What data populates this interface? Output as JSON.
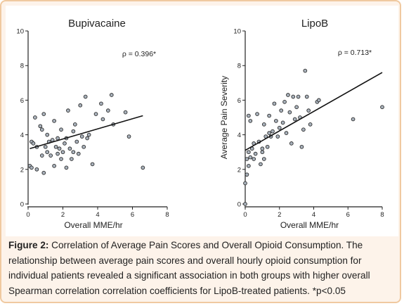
{
  "chart_data": [
    {
      "type": "scatter",
      "title": "Bupivacaine",
      "xlabel": "Overall MME/hr",
      "ylabel": "",
      "xlim": [
        0,
        8
      ],
      "ylim": [
        0,
        10
      ],
      "xticks": [
        "0",
        "2",
        "4",
        "6",
        "8"
      ],
      "yticks": [
        "0",
        "2",
        "4",
        "6",
        "8",
        "10"
      ],
      "annotation": "ρ = 0.396*",
      "trendline": {
        "x": [
          0.1,
          6.6
        ],
        "y": [
          3.2,
          5.1
        ]
      },
      "points": [
        [
          0.1,
          2.2
        ],
        [
          0.2,
          3.6
        ],
        [
          0.2,
          2.1
        ],
        [
          0.3,
          3.5
        ],
        [
          0.4,
          5.0
        ],
        [
          0.5,
          3.3
        ],
        [
          0.5,
          2.0
        ],
        [
          0.7,
          4.5
        ],
        [
          0.8,
          4.3
        ],
        [
          0.8,
          2.8
        ],
        [
          0.9,
          5.2
        ],
        [
          0.9,
          1.8
        ],
        [
          1.0,
          3.3
        ],
        [
          1.1,
          4.0
        ],
        [
          1.1,
          3.0
        ],
        [
          1.2,
          3.6
        ],
        [
          1.3,
          2.8
        ],
        [
          1.4,
          3.7
        ],
        [
          1.5,
          4.8
        ],
        [
          1.5,
          2.2
        ],
        [
          1.6,
          3.3
        ],
        [
          1.7,
          2.9
        ],
        [
          1.7,
          3.8
        ],
        [
          1.8,
          3.2
        ],
        [
          1.9,
          2.6
        ],
        [
          1.9,
          4.3
        ],
        [
          2.0,
          3.0
        ],
        [
          2.1,
          3.5
        ],
        [
          2.2,
          2.1
        ],
        [
          2.2,
          3.8
        ],
        [
          2.3,
          5.4
        ],
        [
          2.4,
          3.2
        ],
        [
          2.5,
          2.6
        ],
        [
          2.6,
          4.2
        ],
        [
          2.6,
          3.0
        ],
        [
          2.7,
          4.6
        ],
        [
          2.8,
          3.6
        ],
        [
          2.9,
          2.9
        ],
        [
          3.0,
          5.7
        ],
        [
          3.1,
          3.9
        ],
        [
          3.2,
          3.3
        ],
        [
          3.3,
          6.2
        ],
        [
          3.4,
          3.8
        ],
        [
          3.5,
          4.0
        ],
        [
          3.7,
          2.3
        ],
        [
          3.9,
          5.2
        ],
        [
          4.2,
          5.8
        ],
        [
          4.3,
          4.9
        ],
        [
          4.6,
          5.4
        ],
        [
          4.8,
          6.3
        ],
        [
          4.9,
          4.6
        ],
        [
          5.6,
          5.3
        ],
        [
          5.8,
          3.9
        ],
        [
          6.6,
          2.1
        ]
      ]
    },
    {
      "type": "scatter",
      "title": "LipoB",
      "xlabel": "Overall MME/hr",
      "ylabel": "Average Pain Severity",
      "xlim": [
        0,
        8
      ],
      "ylim": [
        0,
        10
      ],
      "xticks": [
        "0",
        "2",
        "4",
        "6",
        "8"
      ],
      "yticks": [
        "0",
        "2",
        "4",
        "6",
        "8",
        "10"
      ],
      "annotation": "ρ = 0.713*",
      "trendline": {
        "x": [
          0.0,
          8.0
        ],
        "y": [
          3.1,
          7.6
        ]
      },
      "points": [
        [
          0.0,
          0.0
        ],
        [
          0.0,
          1.2
        ],
        [
          0.1,
          1.7
        ],
        [
          0.1,
          2.6
        ],
        [
          0.2,
          2.2
        ],
        [
          0.2,
          3.0
        ],
        [
          0.2,
          5.1
        ],
        [
          0.3,
          2.7
        ],
        [
          0.3,
          4.8
        ],
        [
          0.4,
          3.2
        ],
        [
          0.5,
          2.6
        ],
        [
          0.5,
          3.5
        ],
        [
          0.6,
          2.9
        ],
        [
          0.7,
          5.2
        ],
        [
          0.8,
          3.6
        ],
        [
          0.9,
          2.3
        ],
        [
          1.0,
          3.0
        ],
        [
          1.0,
          3.2
        ],
        [
          1.1,
          2.6
        ],
        [
          1.1,
          4.6
        ],
        [
          1.2,
          3.9
        ],
        [
          1.3,
          3.3
        ],
        [
          1.4,
          4.1
        ],
        [
          1.4,
          5.1
        ],
        [
          1.5,
          3.9
        ],
        [
          1.6,
          4.2
        ],
        [
          1.7,
          5.8
        ],
        [
          1.8,
          4.8
        ],
        [
          1.9,
          3.9
        ],
        [
          2.0,
          4.4
        ],
        [
          2.1,
          5.4
        ],
        [
          2.2,
          4.7
        ],
        [
          2.3,
          5.9
        ],
        [
          2.4,
          4.1
        ],
        [
          2.5,
          6.3
        ],
        [
          2.6,
          5.3
        ],
        [
          2.7,
          3.5
        ],
        [
          2.8,
          6.2
        ],
        [
          2.9,
          4.9
        ],
        [
          3.0,
          5.6
        ],
        [
          3.1,
          6.2
        ],
        [
          3.2,
          5.0
        ],
        [
          3.3,
          3.3
        ],
        [
          3.4,
          4.3
        ],
        [
          3.5,
          7.7
        ],
        [
          3.6,
          6.2
        ],
        [
          3.7,
          5.4
        ],
        [
          3.8,
          4.6
        ],
        [
          4.2,
          5.9
        ],
        [
          4.3,
          6.0
        ],
        [
          6.3,
          4.9
        ],
        [
          8.0,
          5.6
        ]
      ]
    }
  ],
  "caption": {
    "lead": "Figure 2:",
    "text": " Correlation of Average Pain Scores and Overall Opioid Consumption. The relationship between average pain scores and overall hourly opioid consumption for individual patients revealed a significant association in both groups with higher overall Spearman correlation correlation coefficients for LipoB-treated patients. *p<0.05"
  },
  "colors": {
    "frame_border": "#f0c9a0",
    "frame_background": "#fdf3ea",
    "marker_fill": "#a9b2bc",
    "marker_stroke": "#2b2b2b",
    "line": "#111111"
  }
}
